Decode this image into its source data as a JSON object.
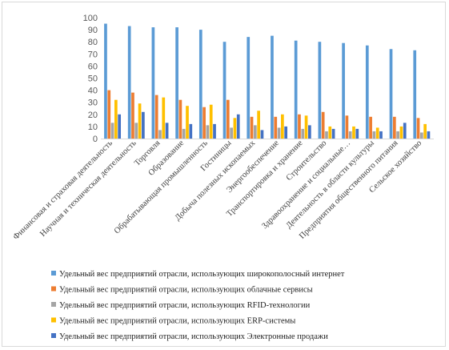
{
  "chart_data": {
    "type": "bar",
    "title": "",
    "xlabel": "",
    "ylabel": "",
    "ylim": [
      0,
      100
    ],
    "yticks": [
      0,
      10,
      20,
      30,
      40,
      50,
      60,
      70,
      80,
      90,
      100
    ],
    "grid": false,
    "legend_position": "bottom",
    "categories": [
      "Финансовая и страховая деятельность",
      "Научная и техническая деятельность",
      "Торговля",
      "Образование",
      "Обрабатывающая промышленность",
      "Гостиницы",
      "Добыча полезных ископаемых",
      "Энергообеспечение",
      "Транспортировка и хранение",
      "Строительство",
      "Здравоохранение и социальные…",
      "Деятельность в области культуры",
      "Предприятия общественного питания",
      "Сельское хозяйство"
    ],
    "series": [
      {
        "name": "Удельный вес предприятий отрасли, использующих  широкополосный интернет",
        "color": "#5b9bd5",
        "values": [
          95,
          93,
          92,
          92,
          90,
          80,
          84,
          85,
          81,
          80,
          79,
          77,
          74,
          73
        ]
      },
      {
        "name": "Удельный вес предприятий отрасли, использующих  облачные сервисы",
        "color": "#ed7d31",
        "values": [
          40,
          38,
          36,
          32,
          26,
          32,
          18,
          18,
          20,
          22,
          19,
          18,
          18,
          17
        ]
      },
      {
        "name": "Удельный вес предприятий отрасли, использующих  RFID-технологии",
        "color": "#a5a5a5",
        "values": [
          13,
          13,
          7,
          8,
          11,
          9,
          11,
          9,
          8,
          6,
          6,
          6,
          6,
          5
        ]
      },
      {
        "name": "Удельный вес предприятий отрасли, использующих  ERP-системы",
        "color": "#ffc000",
        "values": [
          32,
          29,
          34,
          27,
          28,
          17,
          23,
          20,
          19,
          10,
          10,
          9,
          10,
          12
        ]
      },
      {
        "name": "Удельный вес предприятий отрасли, использующих  Электронные продажи",
        "color": "#4472c4",
        "values": [
          20,
          22,
          13,
          12,
          12,
          20,
          7,
          10,
          11,
          8,
          8,
          6,
          13,
          6
        ]
      }
    ]
  }
}
